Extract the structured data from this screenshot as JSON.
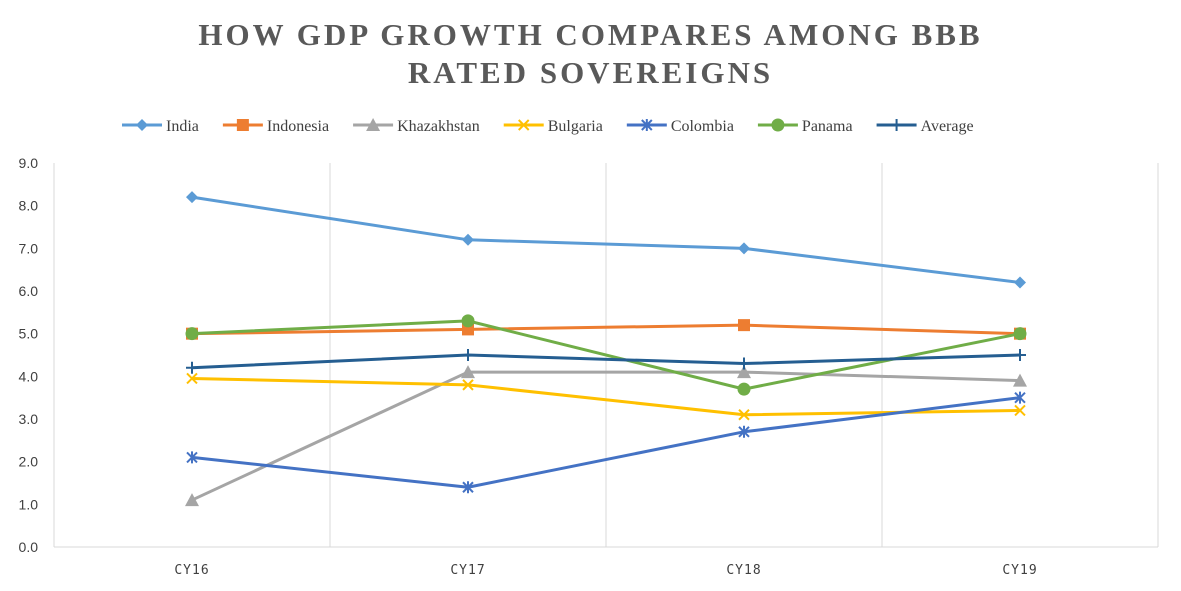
{
  "chart_data": {
    "type": "line",
    "title_line1": "HOW GDP GROWTH COMPARES AMONG BBB",
    "title_line2": "RATED SOVEREIGNS",
    "categories": [
      "CY16",
      "CY17",
      "CY18",
      "CY19"
    ],
    "ylim": [
      0,
      9
    ],
    "yticks": [
      "0.0",
      "1.0",
      "2.0",
      "3.0",
      "4.0",
      "5.0",
      "6.0",
      "7.0",
      "8.0",
      "9.0"
    ],
    "legend_position": "top",
    "grid": "vertical",
    "series": [
      {
        "name": "India",
        "color": "#5B9BD5",
        "marker": "diamond",
        "values": [
          8.2,
          7.2,
          7.0,
          6.2
        ]
      },
      {
        "name": "Indonesia",
        "color": "#ED7D31",
        "marker": "square",
        "values": [
          5.0,
          5.1,
          5.2,
          5.0
        ]
      },
      {
        "name": "Khazakhstan",
        "color": "#A5A5A5",
        "marker": "triangle",
        "values": [
          1.1,
          4.1,
          4.1,
          3.9
        ]
      },
      {
        "name": "Bulgaria",
        "color": "#FFC000",
        "marker": "x",
        "values": [
          3.95,
          3.8,
          3.1,
          3.2
        ]
      },
      {
        "name": "Colombia",
        "color": "#4472C4",
        "marker": "star",
        "values": [
          2.1,
          1.4,
          2.7,
          3.5
        ]
      },
      {
        "name": "Panama",
        "color": "#70AD47",
        "marker": "circle",
        "values": [
          5.0,
          5.3,
          3.7,
          5.0
        ]
      },
      {
        "name": "Average",
        "color": "#255E91",
        "marker": "plus",
        "values": [
          4.2,
          4.5,
          4.3,
          4.5
        ]
      }
    ]
  }
}
